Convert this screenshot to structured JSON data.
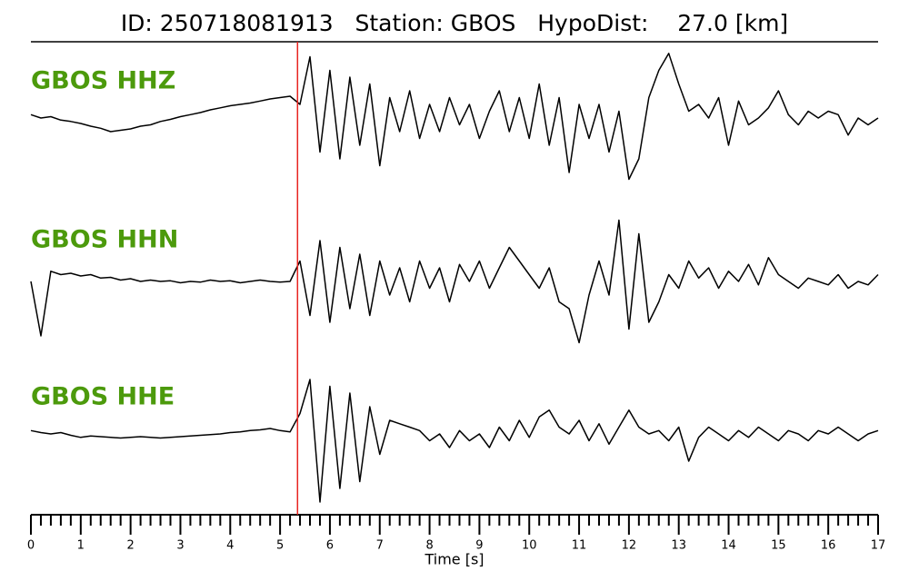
{
  "chart_data": {
    "type": "line",
    "title": "ID: 250718081913   Station: GBOS   HypoDist:    27.0 [km]",
    "xlabel": "Time [s]",
    "xlim": [
      0,
      17
    ],
    "xticks": [
      0,
      1,
      2,
      3,
      4,
      5,
      6,
      7,
      8,
      9,
      10,
      11,
      12,
      13,
      14,
      15,
      16,
      17
    ],
    "pick_time": 5.35,
    "pick_color": "#e8231f",
    "label_color": "#4c9a0c",
    "x": [
      0,
      0.2,
      0.4,
      0.6,
      0.8,
      1,
      1.2,
      1.4,
      1.6,
      1.8,
      2,
      2.2,
      2.4,
      2.6,
      2.8,
      3,
      3.2,
      3.4,
      3.6,
      3.8,
      4,
      4.2,
      4.4,
      4.6,
      4.8,
      5,
      5.2,
      5.4,
      5.6,
      5.8,
      6,
      6.2,
      6.4,
      6.6,
      6.8,
      7,
      7.2,
      7.4,
      7.6,
      7.8,
      8,
      8.2,
      8.4,
      8.6,
      8.8,
      9,
      9.2,
      9.4,
      9.6,
      9.8,
      10,
      10.2,
      10.4,
      10.6,
      10.8,
      11,
      11.2,
      11.4,
      11.6,
      11.8,
      12,
      12.2,
      12.4,
      12.6,
      12.8,
      13,
      13.2,
      13.4,
      13.6,
      13.8,
      14,
      14.2,
      14.4,
      14.6,
      14.8,
      15,
      15.2,
      15.4,
      15.6,
      15.8,
      16,
      16.2,
      16.4,
      16.6,
      16.8,
      17
    ],
    "series": [
      {
        "name": "GBOS HHZ",
        "color": "#000000",
        "values": [
          0.05,
          0.0,
          0.02,
          -0.03,
          -0.05,
          -0.08,
          -0.12,
          -0.15,
          -0.2,
          -0.18,
          -0.16,
          -0.12,
          -0.1,
          -0.05,
          -0.02,
          0.02,
          0.05,
          0.08,
          0.12,
          0.15,
          0.18,
          0.2,
          0.22,
          0.25,
          0.28,
          0.3,
          0.32,
          0.2,
          0.9,
          -0.5,
          0.7,
          -0.6,
          0.6,
          -0.4,
          0.5,
          -0.7,
          0.3,
          -0.2,
          0.4,
          -0.3,
          0.2,
          -0.2,
          0.3,
          -0.1,
          0.2,
          -0.3,
          0.1,
          0.4,
          -0.2,
          0.3,
          -0.3,
          0.5,
          -0.4,
          0.3,
          -0.8,
          0.2,
          -0.3,
          0.2,
          -0.5,
          0.1,
          -0.9,
          -0.6,
          0.3,
          0.7,
          0.95,
          0.5,
          0.1,
          0.2,
          0.0,
          0.3,
          -0.4,
          0.25,
          -0.1,
          0.0,
          0.15,
          0.4,
          0.05,
          -0.1,
          0.1,
          0.0,
          0.1,
          0.05,
          -0.25,
          0.0,
          -0.1,
          0.0
        ]
      },
      {
        "name": "GBOS HHN",
        "color": "#000000",
        "values": [
          0.0,
          -0.8,
          0.15,
          0.1,
          0.12,
          0.08,
          0.1,
          0.05,
          0.06,
          0.02,
          0.04,
          0.0,
          0.02,
          0.0,
          0.01,
          -0.02,
          0.0,
          -0.01,
          0.02,
          0.0,
          0.01,
          -0.02,
          0.0,
          0.02,
          0.0,
          -0.01,
          0.0,
          0.3,
          -0.5,
          0.6,
          -0.6,
          0.5,
          -0.4,
          0.4,
          -0.5,
          0.3,
          -0.2,
          0.2,
          -0.3,
          0.3,
          -0.1,
          0.2,
          -0.3,
          0.25,
          0.0,
          0.3,
          -0.1,
          0.2,
          0.5,
          0.3,
          0.1,
          -0.1,
          0.2,
          -0.3,
          -0.4,
          -0.9,
          -0.2,
          0.3,
          -0.2,
          0.9,
          -0.7,
          0.7,
          -0.6,
          -0.3,
          0.1,
          -0.1,
          0.3,
          0.05,
          0.2,
          -0.1,
          0.15,
          0.0,
          0.25,
          -0.05,
          0.35,
          0.1,
          0.0,
          -0.1,
          0.05,
          0.0,
          -0.05,
          0.1,
          -0.1,
          0.0,
          -0.05,
          0.1
        ]
      },
      {
        "name": "GBOS HHE",
        "color": "#000000",
        "values": [
          0.05,
          0.02,
          0.0,
          0.02,
          -0.02,
          -0.05,
          -0.03,
          -0.04,
          -0.05,
          -0.06,
          -0.05,
          -0.04,
          -0.05,
          -0.06,
          -0.05,
          -0.04,
          -0.03,
          -0.02,
          -0.01,
          0.0,
          0.02,
          0.03,
          0.05,
          0.06,
          0.08,
          0.05,
          0.03,
          0.3,
          0.8,
          -1.0,
          0.7,
          -0.8,
          0.6,
          -0.7,
          0.4,
          -0.3,
          0.2,
          0.15,
          0.1,
          0.05,
          -0.1,
          0.0,
          -0.2,
          0.05,
          -0.1,
          0.0,
          -0.2,
          0.1,
          -0.1,
          0.2,
          -0.05,
          0.25,
          0.35,
          0.1,
          0.0,
          0.2,
          -0.1,
          0.15,
          -0.15,
          0.1,
          0.35,
          0.1,
          0.0,
          0.05,
          -0.1,
          0.1,
          -0.4,
          -0.05,
          0.1,
          0.0,
          -0.1,
          0.05,
          -0.05,
          0.1,
          0.0,
          -0.1,
          0.05,
          0.0,
          -0.1,
          0.05,
          0.0,
          0.1,
          0.0,
          -0.1,
          0.0,
          0.05
        ]
      }
    ]
  }
}
